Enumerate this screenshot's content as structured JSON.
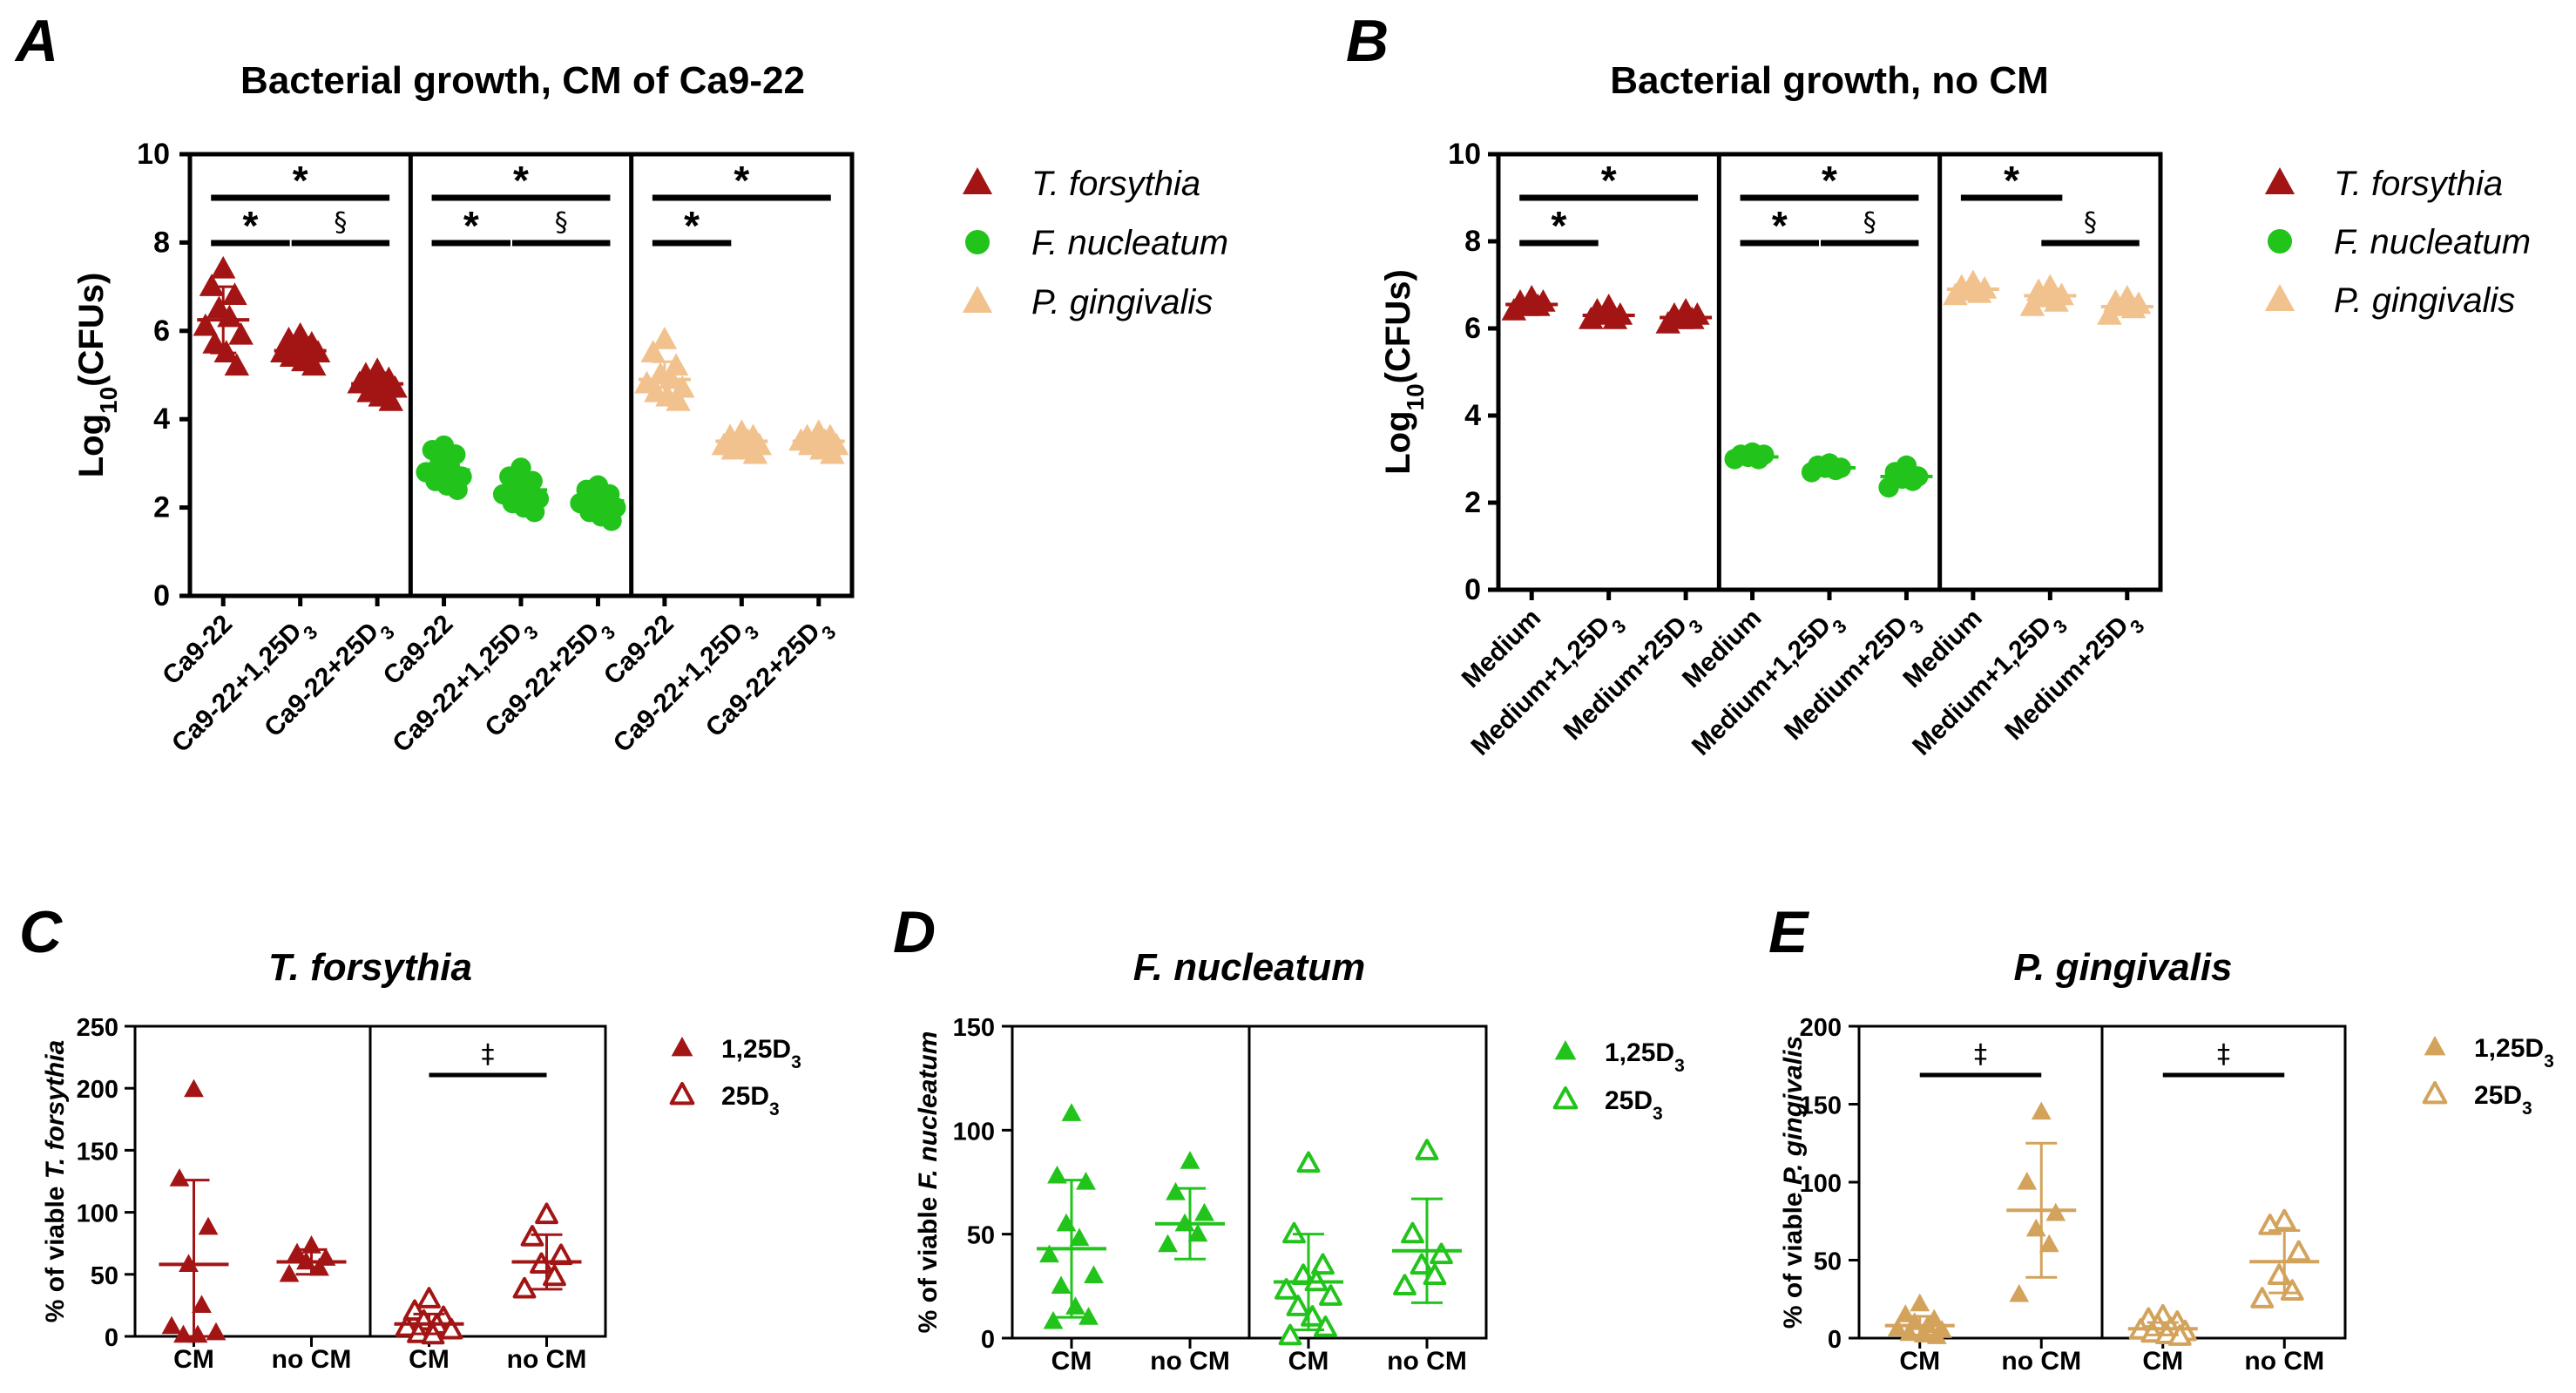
{
  "chart_data": [
    {
      "id": "A",
      "type": "scatter",
      "title": "Bacterial growth, CM of Ca9-22",
      "ylabel": "Log10(CFUs)",
      "ylabel_parts": [
        "Log",
        "10",
        "(CFUs)"
      ],
      "ylim": [
        0,
        10
      ],
      "yticks": [
        "0",
        "2",
        "4",
        "6",
        "8",
        "10"
      ],
      "categories": [
        "Ca9-22",
        "Ca9-22+1,25D3",
        "Ca9-22+25D3"
      ],
      "categories_display": [
        [
          "Ca9-22"
        ],
        [
          "Ca9-22+1,25D",
          "3"
        ],
        [
          "Ca9-22+25D",
          "3"
        ]
      ],
      "legend": [
        {
          "name": "T. forsythia",
          "color": "#a31515",
          "marker": "triangle"
        },
        {
          "name": "F. nucleatum",
          "color": "#22c41c",
          "marker": "circle"
        },
        {
          "name": "P. gingivalis",
          "color": "#f2c28e",
          "marker": "triangle"
        }
      ],
      "groups": [
        {
          "name": "T. forsythia",
          "color": "#a31515",
          "marker": "triangle",
          "values": [
            [
              7.4,
              7.0,
              6.8,
              6.5,
              6.3,
              6.1,
              5.9,
              5.7,
              5.5,
              5.2
            ],
            [
              5.9,
              5.8,
              5.7,
              5.6,
              5.6,
              5.5,
              5.5,
              5.4,
              5.3,
              5.2
            ],
            [
              5.1,
              5.0,
              4.9,
              4.9,
              4.8,
              4.8,
              4.7,
              4.6,
              4.5,
              4.4
            ]
          ],
          "means": [
            6.25,
            5.55,
            4.8
          ],
          "sds": [
            0.75,
            0.3,
            0.25
          ],
          "sig": [
            {
              "a": 0,
              "b": 2,
              "label": "*",
              "level": 2
            },
            {
              "a": 0,
              "b": 1,
              "label": "*",
              "level": 1
            },
            {
              "a": 1,
              "b": 2,
              "label": "§",
              "level": 1
            }
          ]
        },
        {
          "name": "F. nucleatum",
          "color": "#22c41c",
          "marker": "circle",
          "values": [
            [
              3.4,
              3.3,
              3.2,
              3.0,
              2.9,
              2.8,
              2.7,
              2.6,
              2.5,
              2.4
            ],
            [
              2.9,
              2.7,
              2.6,
              2.5,
              2.4,
              2.3,
              2.2,
              2.1,
              2.0,
              1.9
            ],
            [
              2.5,
              2.4,
              2.3,
              2.2,
              2.2,
              2.1,
              2.0,
              1.9,
              1.8,
              1.7
            ]
          ],
          "means": [
            2.85,
            2.4,
            2.15
          ],
          "sds": [
            0.35,
            0.3,
            0.25
          ],
          "sig": [
            {
              "a": 0,
              "b": 2,
              "label": "*",
              "level": 2
            },
            {
              "a": 0,
              "b": 1,
              "label": "*",
              "level": 1
            },
            {
              "a": 1,
              "b": 2,
              "label": "§",
              "level": 1
            }
          ]
        },
        {
          "name": "P. gingivalis",
          "color": "#f2c28e",
          "marker": "triangle",
          "values": [
            [
              5.8,
              5.5,
              5.2,
              5.0,
              4.9,
              4.8,
              4.7,
              4.6,
              4.5,
              4.4
            ],
            [
              3.7,
              3.6,
              3.6,
              3.5,
              3.5,
              3.4,
              3.4,
              3.3,
              3.3,
              3.2
            ],
            [
              3.7,
              3.6,
              3.6,
              3.5,
              3.5,
              3.5,
              3.4,
              3.4,
              3.3,
              3.2
            ]
          ],
          "means": [
            4.9,
            3.5,
            3.5
          ],
          "sds": [
            0.4,
            0.15,
            0.15
          ],
          "sig": [
            {
              "a": 0,
              "b": 2,
              "label": "*",
              "level": 2
            },
            {
              "a": 0,
              "b": 1,
              "label": "*",
              "level": 1
            }
          ]
        }
      ]
    },
    {
      "id": "B",
      "type": "scatter",
      "title": "Bacterial growth, no CM",
      "ylabel": "Log10(CFUs)",
      "ylabel_parts": [
        "Log",
        "10",
        "(CFUs)"
      ],
      "ylim": [
        0,
        10
      ],
      "yticks": [
        "0",
        "2",
        "4",
        "6",
        "8",
        "10"
      ],
      "categories": [
        "Medium",
        "Medium+1,25D3",
        "Medium+25D3"
      ],
      "categories_display": [
        [
          "Medium"
        ],
        [
          "Medium+1,25D",
          "3"
        ],
        [
          "Medium+25D",
          "3"
        ]
      ],
      "legend": [
        {
          "name": "T. forsythia",
          "color": "#a31515",
          "marker": "triangle"
        },
        {
          "name": "F. nucleatum",
          "color": "#22c41c",
          "marker": "circle"
        },
        {
          "name": "P. gingivalis",
          "color": "#f2c28e",
          "marker": "triangle"
        }
      ],
      "groups": [
        {
          "name": "T. forsythia",
          "color": "#a31515",
          "marker": "triangle",
          "values": [
            [
              6.7,
              6.6,
              6.6,
              6.5,
              6.5,
              6.4
            ],
            [
              6.5,
              6.4,
              6.3,
              6.3,
              6.2,
              6.2
            ],
            [
              6.4,
              6.3,
              6.3,
              6.2,
              6.2,
              6.1
            ]
          ],
          "means": [
            6.55,
            6.3,
            6.25
          ],
          "sds": [
            0.1,
            0.1,
            0.1
          ],
          "sig": [
            {
              "a": 0,
              "b": 2,
              "label": "*",
              "level": 2
            },
            {
              "a": 0,
              "b": 1,
              "label": "*",
              "level": 1
            }
          ]
        },
        {
          "name": "F. nucleatum",
          "color": "#22c41c",
          "marker": "circle",
          "values": [
            [
              3.15,
              3.1,
              3.1,
              3.05,
              3.0,
              3.0
            ],
            [
              2.9,
              2.85,
              2.8,
              2.8,
              2.75,
              2.7
            ],
            [
              2.85,
              2.7,
              2.6,
              2.55,
              2.5,
              2.35
            ]
          ],
          "means": [
            3.05,
            2.8,
            2.6
          ],
          "sds": [
            0.05,
            0.05,
            0.15
          ],
          "sig": [
            {
              "a": 0,
              "b": 2,
              "label": "*",
              "level": 2
            },
            {
              "a": 0,
              "b": 1,
              "label": "*",
              "level": 1
            },
            {
              "a": 1,
              "b": 2,
              "label": "§",
              "level": 1
            }
          ]
        },
        {
          "name": "P. gingivalis",
          "color": "#f2c28e",
          "marker": "triangle",
          "values": [
            [
              7.05,
              6.95,
              6.9,
              6.85,
              6.8,
              6.75
            ],
            [
              6.95,
              6.85,
              6.75,
              6.7,
              6.6,
              6.5
            ],
            [
              6.7,
              6.6,
              6.55,
              6.5,
              6.45,
              6.3
            ]
          ],
          "means": [
            6.9,
            6.75,
            6.5
          ],
          "sds": [
            0.1,
            0.15,
            0.15
          ],
          "sig": [
            {
              "a": 0,
              "b": 1,
              "label": "*",
              "level": 2
            },
            {
              "a": 1,
              "b": 2,
              "label": "§",
              "level": 1
            }
          ]
        }
      ]
    },
    {
      "id": "C",
      "type": "scatter",
      "title": "T. forsythia",
      "ylabel_plain": "% of viable ",
      "ylabel_italic": "T. forsythia",
      "ylim": [
        0,
        250
      ],
      "yticks": [
        "0",
        "50",
        "100",
        "150",
        "200",
        "250"
      ],
      "categories": [
        "CM",
        "no CM"
      ],
      "color": "#a31515",
      "legend": [
        {
          "name": "1,25D3",
          "base": "1,25D",
          "sub": "3",
          "filled": true
        },
        {
          "name": "25D3",
          "base": "25D",
          "sub": "3",
          "filled": false
        }
      ],
      "groups": [
        {
          "name": "1,25D3",
          "filled": true,
          "values": [
            [
              199,
              127,
              88,
              58,
              25,
              8,
              3,
              1,
              1
            ],
            [
              73,
              67,
              63,
              60,
              55,
              50
            ]
          ],
          "means": [
            58,
            60
          ],
          "sds": [
            68,
            10
          ],
          "sig": []
        },
        {
          "name": "25D3",
          "filled": false,
          "values": [
            [
              30,
              20,
              15,
              12,
              9,
              7,
              5,
              2,
              1
            ],
            [
              98,
              80,
              65,
              58,
              48,
              38
            ]
          ],
          "means": [
            10,
            60
          ],
          "sds": [
            8,
            22
          ],
          "sig": [
            {
              "a": 0,
              "b": 1,
              "label": "‡",
              "level": 1
            }
          ]
        }
      ]
    },
    {
      "id": "D",
      "type": "scatter",
      "title": "F. nucleatum",
      "ylabel_plain": "% of viable ",
      "ylabel_italic": "F. nucleatum",
      "ylim": [
        0,
        150
      ],
      "yticks": [
        "0",
        "50",
        "100",
        "150"
      ],
      "categories": [
        "CM",
        "no CM"
      ],
      "color": "#22c41c",
      "legend": [
        {
          "name": "1,25D3",
          "base": "1,25D",
          "sub": "3",
          "filled": true
        },
        {
          "name": "25D3",
          "base": "25D",
          "sub": "3",
          "filled": false
        }
      ],
      "groups": [
        {
          "name": "1,25D3",
          "filled": true,
          "values": [
            [
              108,
              78,
              75,
              55,
              48,
              40,
              30,
              25,
              15,
              10,
              8
            ],
            [
              85,
              70,
              60,
              55,
              50,
              45
            ]
          ],
          "means": [
            43,
            55
          ],
          "sds": [
            33,
            17
          ],
          "sig": []
        },
        {
          "name": "25D3",
          "filled": false,
          "values": [
            [
              84,
              50,
              35,
              30,
              27,
              23,
              20,
              15,
              10,
              5,
              1
            ],
            [
              90,
              50,
              40,
              35,
              30,
              25
            ]
          ],
          "means": [
            27,
            42
          ],
          "sds": [
            23,
            25
          ],
          "sig": []
        }
      ]
    },
    {
      "id": "E",
      "type": "scatter",
      "title": "P. gingivalis",
      "ylabel_plain": "% of viable ",
      "ylabel_italic": "P. gingivalis",
      "ylim": [
        0,
        200
      ],
      "yticks": [
        "0",
        "50",
        "100",
        "150",
        "200"
      ],
      "categories": [
        "CM",
        "no CM"
      ],
      "color": "#d3a35c",
      "legend": [
        {
          "name": "1,25D3",
          "base": "1,25D",
          "sub": "3",
          "filled": true
        },
        {
          "name": "25D3",
          "base": "25D",
          "sub": "3",
          "filled": false
        }
      ],
      "groups": [
        {
          "name": "1,25D3",
          "filled": true,
          "values": [
            [
              22,
              15,
              12,
              10,
              8,
              6,
              5,
              3,
              2,
              1
            ],
            [
              145,
              100,
              80,
              70,
              60,
              28
            ]
          ],
          "means": [
            8,
            82
          ],
          "sds": [
            6,
            43
          ],
          "sig": [
            {
              "a": 0,
              "b": 1,
              "label": "‡",
              "level": 1
            }
          ]
        },
        {
          "name": "25D3",
          "filled": false,
          "values": [
            [
              14,
              12,
              10,
              8,
              6,
              5,
              4,
              3,
              2,
              1
            ],
            [
              75,
              72,
              55,
              40,
              30,
              25
            ]
          ],
          "means": [
            6,
            49
          ],
          "sds": [
            4,
            20
          ],
          "sig": [
            {
              "a": 0,
              "b": 1,
              "label": "‡",
              "level": 1
            }
          ]
        }
      ]
    }
  ]
}
